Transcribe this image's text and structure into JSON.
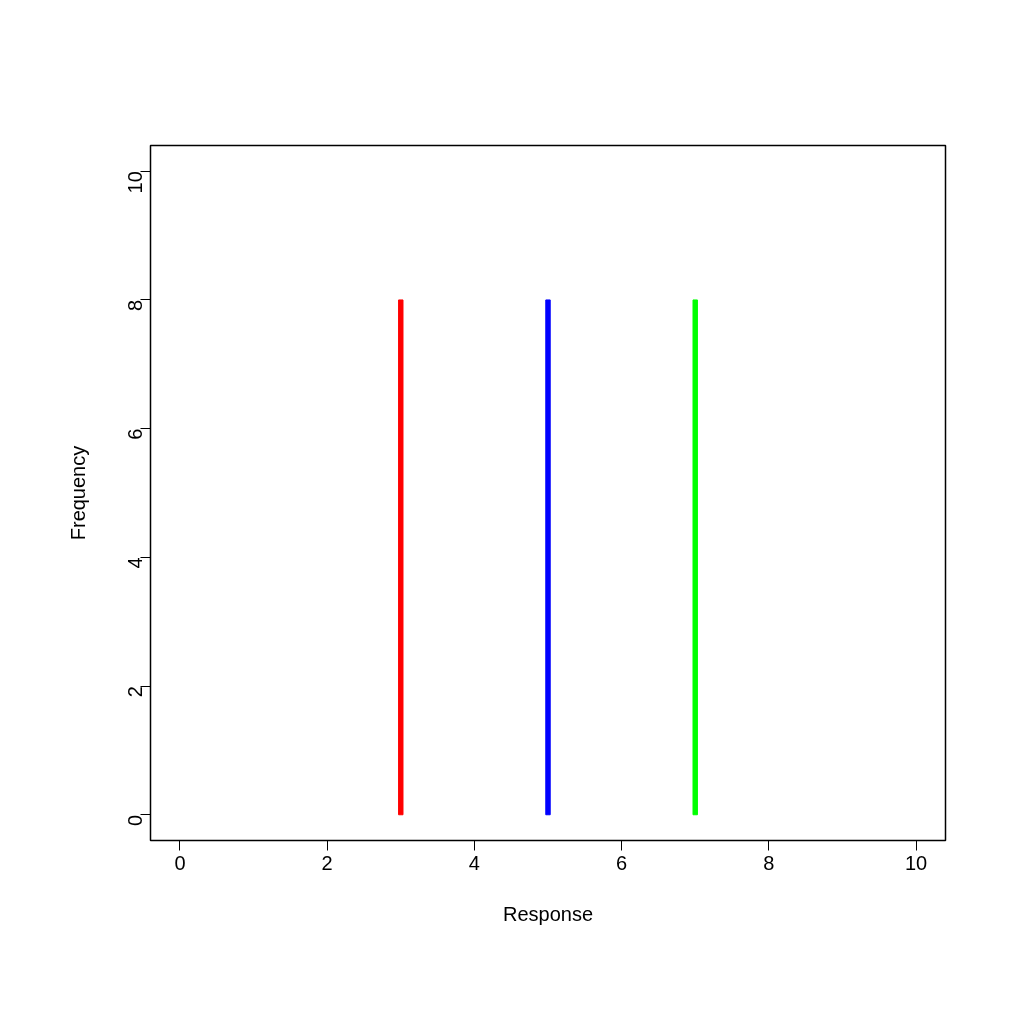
{
  "chart_data": {
    "type": "bar",
    "xlabel": "Response",
    "ylabel": "Frequency",
    "x": [
      3,
      5,
      7
    ],
    "values": [
      8,
      8,
      8
    ],
    "colors": [
      "#ff0000",
      "#0000ff",
      "#00ff00"
    ],
    "xlim": [
      -0.4,
      10.4
    ],
    "ylim": [
      -0.4,
      10.4
    ],
    "xticks": [
      0,
      2,
      4,
      6,
      8,
      10
    ],
    "yticks": [
      0,
      2,
      4,
      6,
      8,
      10
    ]
  }
}
